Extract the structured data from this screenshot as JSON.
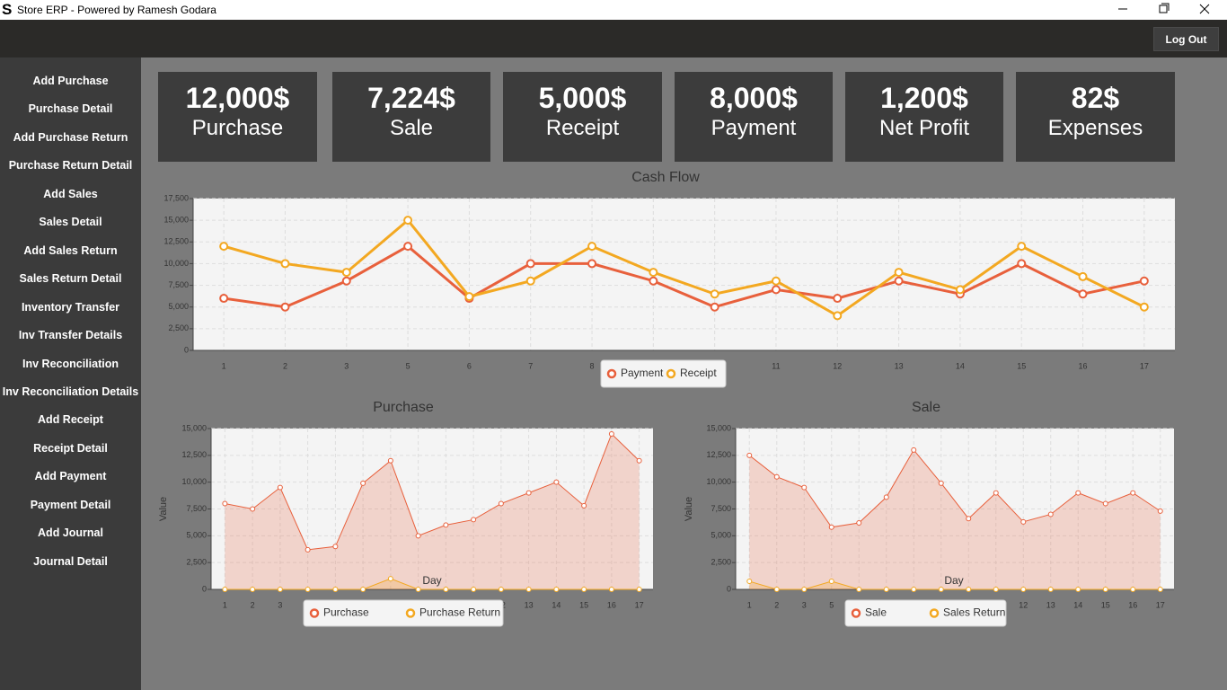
{
  "window": {
    "title": "Store ERP - Powered by Ramesh Godara"
  },
  "header": {
    "logout": "Log Out"
  },
  "sidebar": {
    "items": [
      "Add Purchase",
      "Purchase Detail",
      "Add Purchase Return",
      "Purchase Return Detail",
      "Add Sales",
      "Sales Detail",
      "Add Sales Return",
      "Sales Return Detail",
      "Inventory Transfer",
      "Inv Transfer Details",
      "Inv Reconciliation",
      "Inv Reconciliation Details",
      "Add Receipt",
      "Receipt Detail",
      "Add Payment",
      "Payment Detail",
      "Add Journal",
      "Journal Detail"
    ]
  },
  "cards": [
    {
      "value": "12,000$",
      "label": "Purchase"
    },
    {
      "value": "7,224$",
      "label": "Sale"
    },
    {
      "value": "5,000$",
      "label": "Receipt"
    },
    {
      "value": "8,000$",
      "label": "Payment"
    },
    {
      "value": "1,200$",
      "label": "Net Profit"
    },
    {
      "value": "82$",
      "label": "Expenses"
    }
  ],
  "chart_data": [
    {
      "type": "line",
      "title": "Cash Flow",
      "categories": [
        "1",
        "2",
        "3",
        "5",
        "6",
        "7",
        "8",
        "9",
        "10",
        "11",
        "12",
        "13",
        "14",
        "15",
        "16",
        "17"
      ],
      "series": [
        {
          "name": "Payment",
          "color": "#e8603c",
          "values": [
            6000,
            5000,
            8000,
            12000,
            6000,
            10000,
            10000,
            8000,
            5000,
            7000,
            6000,
            8000,
            6500,
            10000,
            6500,
            8000
          ]
        },
        {
          "name": "Receipt",
          "color": "#f3a821",
          "values": [
            12000,
            10000,
            9000,
            15000,
            6200,
            8000,
            12000,
            9000,
            6500,
            8000,
            4000,
            9000,
            7000,
            12000,
            8500,
            5000
          ]
        }
      ],
      "ylim": [
        0,
        17500
      ],
      "yticks": [
        0,
        {
          "value": 2500,
          "label": "2,500"
        },
        {
          "value": 5000,
          "label": "5,000"
        },
        {
          "value": 7500,
          "label": "7,500"
        },
        {
          "value": 10000,
          "label": "10,000"
        },
        {
          "value": 12500,
          "label": "12,500"
        },
        {
          "value": 15000,
          "label": "15,000"
        },
        {
          "value": 17500,
          "label": "17,500"
        }
      ],
      "grid": true,
      "legend": "bottom"
    },
    {
      "type": "area",
      "title": "Purchase",
      "xlabel": "Day",
      "ylabel": "Value",
      "categories": [
        "1",
        "2",
        "3",
        "5",
        "6",
        "7",
        "8",
        "9",
        "10",
        "11",
        "12",
        "13",
        "14",
        "15",
        "16",
        "17"
      ],
      "series": [
        {
          "name": "Purchase",
          "color": "#e8603c",
          "values": [
            8000,
            7500,
            9500,
            3700,
            4000,
            9900,
            12000,
            5000,
            6000,
            6500,
            8000,
            9000,
            10000,
            7800,
            14500,
            12000
          ]
        },
        {
          "name": "Purchase Return",
          "color": "#f3a821",
          "values": [
            0,
            0,
            0,
            0,
            0,
            0,
            1000,
            0,
            0,
            0,
            0,
            0,
            0,
            0,
            0,
            0
          ]
        }
      ],
      "ylim": [
        0,
        15000
      ],
      "yticks": [
        0,
        {
          "value": 2500,
          "label": "2,500"
        },
        {
          "value": 5000,
          "label": "5,000"
        },
        {
          "value": 7500,
          "label": "7,500"
        },
        {
          "value": 10000,
          "label": "10,000"
        },
        {
          "value": 12500,
          "label": "12,500"
        },
        {
          "value": 15000,
          "label": "15,000"
        }
      ],
      "grid": true,
      "legend": "bottom"
    },
    {
      "type": "area",
      "title": "Sale",
      "xlabel": "Day",
      "ylabel": "Value",
      "categories": [
        "1",
        "2",
        "3",
        "5",
        "6",
        "7",
        "8",
        "9",
        "10",
        "11",
        "12",
        "13",
        "14",
        "15",
        "16",
        "17"
      ],
      "series": [
        {
          "name": "Sale",
          "color": "#e8603c",
          "values": [
            12500,
            10500,
            9500,
            5800,
            6200,
            8600,
            13000,
            9900,
            6600,
            9000,
            6300,
            7000,
            9000,
            8000,
            9000,
            7300
          ]
        },
        {
          "name": "Sales Return",
          "color": "#f3a821",
          "values": [
            750,
            0,
            0,
            750,
            0,
            0,
            0,
            0,
            0,
            0,
            0,
            0,
            0,
            0,
            0,
            0
          ]
        }
      ],
      "ylim": [
        0,
        15000
      ],
      "yticks": [
        0,
        {
          "value": 2500,
          "label": "2,500"
        },
        {
          "value": 5000,
          "label": "5,000"
        },
        {
          "value": 7500,
          "label": "7,500"
        },
        {
          "value": 10000,
          "label": "10,000"
        },
        {
          "value": 12500,
          "label": "12,500"
        },
        {
          "value": 15000,
          "label": "15,000"
        }
      ],
      "grid": true,
      "legend": "bottom"
    }
  ]
}
